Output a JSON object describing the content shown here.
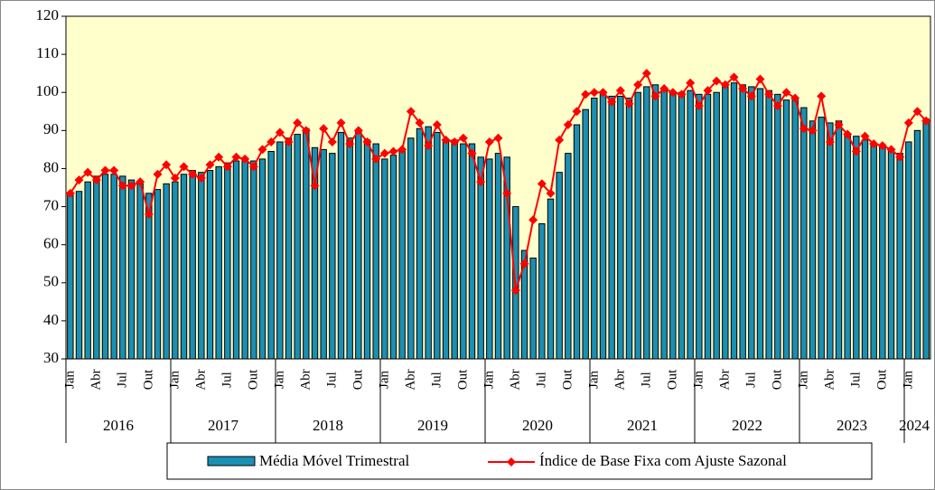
{
  "chart_data": {
    "type": "combo",
    "categories": [
      "Jan",
      null,
      null,
      "Abr",
      null,
      null,
      "Jul",
      null,
      null,
      "Out",
      null,
      null,
      "Jan",
      null,
      null,
      "Abr",
      null,
      null,
      "Jul",
      null,
      null,
      "Out",
      null,
      null,
      "Jan",
      null,
      null,
      "Abr",
      null,
      null,
      "Jul",
      null,
      null,
      "Out",
      null,
      null,
      "Jan",
      null,
      null,
      "Abr",
      null,
      null,
      "Jul",
      null,
      null,
      "Out",
      null,
      null,
      "Jan",
      null,
      null,
      "Abr",
      null,
      null,
      "Jul",
      null,
      null,
      "Out",
      null,
      null,
      "Jan",
      null,
      null,
      "Abr",
      null,
      null,
      "Jul",
      null,
      null,
      "Out",
      null,
      null,
      "Jan",
      null,
      null,
      "Abr",
      null,
      null,
      "Jul",
      null,
      null,
      "Out",
      null,
      null,
      "Jan",
      null,
      null,
      "Abr",
      null,
      null,
      "Jul",
      null,
      null,
      "Out",
      null,
      null,
      "Jan",
      null,
      null
    ],
    "year_groups": [
      {
        "label": "2016",
        "count": 12
      },
      {
        "label": "2017",
        "count": 12
      },
      {
        "label": "2018",
        "count": 12
      },
      {
        "label": "2019",
        "count": 12
      },
      {
        "label": "2020",
        "count": 12
      },
      {
        "label": "2021",
        "count": 12
      },
      {
        "label": "2022",
        "count": 12
      },
      {
        "label": "2023",
        "count": 12
      },
      {
        "label": "2024",
        "count": 3
      }
    ],
    "series": [
      {
        "name": "Média Móvel Trimestral",
        "kind": "bar",
        "color": "#1b8fb4",
        "values": [
          73,
          74,
          76.5,
          78,
          78.5,
          78.5,
          78,
          77,
          76,
          73.5,
          74.5,
          76,
          76.5,
          78.5,
          79.5,
          79,
          79.5,
          80.5,
          81.5,
          82,
          82,
          82,
          82.5,
          84.5,
          87,
          88,
          89,
          90.5,
          85.5,
          85,
          84,
          89.5,
          88,
          89.5,
          87.5,
          86.5,
          82.5,
          83.5,
          84.5,
          88,
          90.5,
          91,
          89.5,
          87,
          87.5,
          86.5,
          86.5,
          83,
          82.5,
          84,
          83,
          70,
          58.5,
          56.5,
          65.5,
          72,
          79,
          84,
          91.5,
          95.5,
          98.5,
          99.5,
          99,
          99,
          98.5,
          100,
          101.5,
          102,
          100.5,
          100,
          100,
          100.5,
          99.5,
          99.5,
          100,
          101.5,
          102.5,
          102,
          101.5,
          101,
          100.5,
          99.5,
          98,
          98.5,
          96,
          92.5,
          93.5,
          92,
          92.5,
          89,
          88.5,
          87.5,
          86.5,
          86,
          85,
          84,
          87,
          90,
          93
        ]
      },
      {
        "name": "Índice de Base Fixa com Ajuste Sazonal",
        "kind": "line",
        "color": "#ff0000",
        "values": [
          73.5,
          77,
          79,
          77,
          79.5,
          79.5,
          75.5,
          75.5,
          76.5,
          68,
          78.5,
          81,
          77.5,
          80.5,
          78.5,
          77.5,
          81,
          83,
          80.5,
          83,
          82.5,
          80.5,
          85,
          87,
          89.5,
          87,
          92,
          90,
          75.5,
          90.5,
          87,
          92,
          86.5,
          90,
          87,
          82.5,
          84,
          84.5,
          85,
          95,
          92,
          86,
          91.5,
          87.5,
          87,
          88,
          84,
          76.5,
          87,
          88,
          73.5,
          48,
          55,
          66.5,
          76,
          73.5,
          87.5,
          91.5,
          95,
          99.5,
          100,
          100,
          97.5,
          100.5,
          97,
          102,
          105,
          99,
          101,
          100,
          99.5,
          102.5,
          96.5,
          100.5,
          103,
          102,
          104,
          101,
          99,
          103.5,
          99.5,
          96.5,
          100,
          98.5,
          90.5,
          90,
          99,
          87,
          91.5,
          89,
          84.5,
          88.5,
          86.5,
          86,
          85,
          83,
          92,
          95,
          92.5
        ]
      }
    ],
    "ylim": [
      30,
      120
    ],
    "yticks": [
      30,
      40,
      50,
      60,
      70,
      80,
      90,
      100,
      110,
      120
    ],
    "plot_background": "#ffffcc"
  }
}
